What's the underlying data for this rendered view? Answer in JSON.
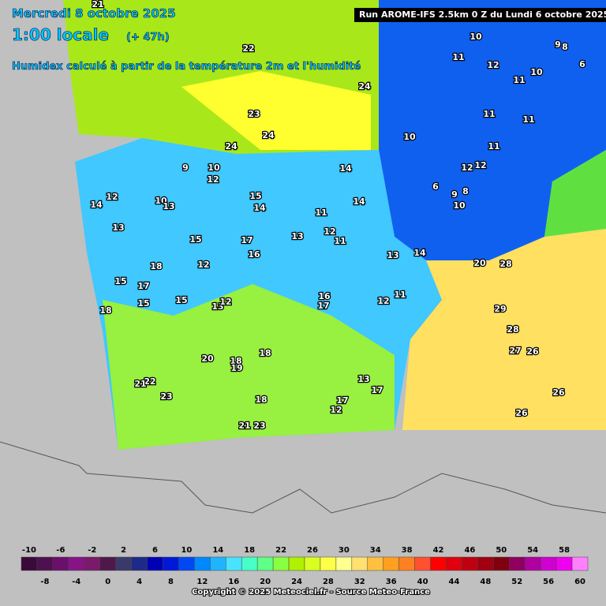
{
  "header": {
    "date": "Mercredi 8 octobre 2025",
    "time": "1:00 locale",
    "lead": "(+ 47h)",
    "description": "Humidex calculé à partir de la température 2m et l'humidité",
    "run": "Run AROME-IFS 2.5km 0 Z du Lundi 6 octobre 2025"
  },
  "contour_labels": [
    21,
    22,
    24,
    23,
    24,
    24,
    9,
    10,
    12,
    12,
    14,
    10,
    13,
    13,
    15,
    14,
    15,
    17,
    16,
    13,
    11,
    12,
    11,
    14,
    14,
    13,
    14,
    15,
    17,
    18,
    12,
    15,
    13,
    12,
    15,
    18,
    16,
    17,
    12,
    11,
    10,
    11,
    12,
    9,
    8,
    6,
    10,
    11,
    10,
    11,
    11,
    11,
    12,
    12,
    6,
    9,
    8,
    10,
    29,
    28,
    27,
    26,
    26,
    26,
    20,
    28,
    20,
    18,
    19,
    18,
    22,
    21,
    23,
    13,
    17,
    17,
    12,
    18,
    21,
    23
  ],
  "colorbar": {
    "values": [
      -10,
      -8,
      -6,
      -4,
      -2,
      0,
      2,
      4,
      6,
      8,
      10,
      12,
      14,
      16,
      18,
      20,
      22,
      24,
      26,
      28,
      30,
      32,
      34,
      36,
      38,
      40,
      42,
      44,
      46,
      48,
      50,
      52,
      54,
      56,
      58,
      60
    ],
    "colors": [
      "#3a0a3a",
      "#4e104e",
      "#6a106a",
      "#861486",
      "#7a1a6a",
      "#50184a",
      "#3a3a6a",
      "#1e2a8a",
      "#0000b4",
      "#0018d8",
      "#0048f4",
      "#0088ff",
      "#20b4ff",
      "#48e4ff",
      "#48ffc8",
      "#60ff88",
      "#88ff40",
      "#b0f000",
      "#d8ff20",
      "#ffff48",
      "#ffff90",
      "#ffe070",
      "#ffc040",
      "#ffa020",
      "#ff8020",
      "#ff5030",
      "#ff0000",
      "#e00010",
      "#c00010",
      "#a00010",
      "#800010",
      "#900060",
      "#b000a0",
      "#d000d0",
      "#f000f0",
      "#ff80ff"
    ]
  },
  "footer": {
    "copyright": "Copyright © 2025 Meteociel.fr - Source Meteo-France"
  }
}
